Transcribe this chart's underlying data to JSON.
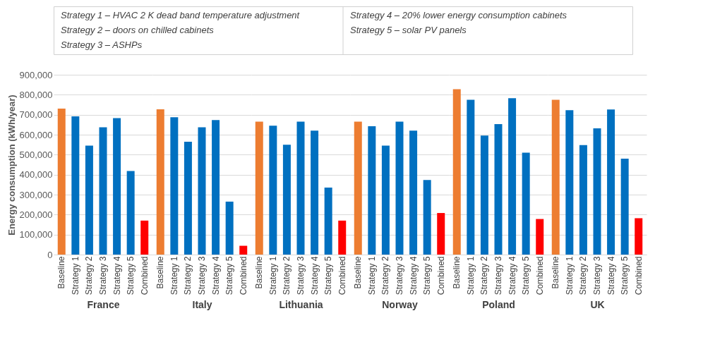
{
  "chart_data": [
    {
      "type": "bar",
      "annotations": [
        "Strategy 1 – HVAC 2 K dead band temperature adjustment",
        "Strategy 2 – doors on chilled cabinets",
        "Strategy 3 – ASHPs",
        "Strategy 4 – 20% lower energy consumption cabinets",
        "Strategy 5 – solar PV panels"
      ],
      "ylabel": "Energy consumption (kWh/year)",
      "xlabel": "France",
      "categories": [
        "Baseline",
        "Strategy 1",
        "Strategy 2",
        "Strategy 3",
        "Strategy 4",
        "Strategy 5",
        "Combined"
      ],
      "values": [
        731000,
        692000,
        545000,
        637000,
        683000,
        418000,
        170000
      ],
      "colors": [
        "#ed7d31",
        "#0070c0",
        "#0070c0",
        "#0070c0",
        "#0070c0",
        "#0070c0",
        "#ff0000"
      ],
      "ylim": [
        0,
        900000
      ],
      "yticks": [
        0,
        {
          "value": 100000,
          "label": "100,000"
        },
        {
          "value": 200000,
          "label": "200,000"
        },
        {
          "value": 300000,
          "label": "300,000"
        },
        {
          "value": 400000,
          "label": "400,000"
        },
        {
          "value": 500000,
          "label": "500,000"
        },
        {
          "value": 600000,
          "label": "600,000"
        },
        {
          "value": 700000,
          "label": "700,000"
        },
        {
          "value": 800000,
          "label": "800,000"
        },
        {
          "value": 900000,
          "label": "900,000"
        }
      ],
      "grid": "y"
    },
    {
      "type": "bar",
      "xlabel": "Italy",
      "tick_labels": "x",
      "categories": [
        "Baseline",
        "Strategy 1",
        "Strategy 2",
        "Strategy 3",
        "Strategy 4",
        "Strategy 5",
        "Combined"
      ],
      "values": [
        727000,
        687000,
        565000,
        637000,
        673000,
        265000,
        44000
      ],
      "colors": [
        "#ed7d31",
        "#0070c0",
        "#0070c0",
        "#0070c0",
        "#0070c0",
        "#0070c0",
        "#ff0000"
      ],
      "ylim": [
        0,
        900000
      ],
      "yticks": [
        0,
        100000,
        200000,
        300000,
        400000,
        500000,
        600000,
        700000,
        800000,
        900000
      ],
      "grid": "y"
    },
    {
      "type": "bar",
      "xlabel": "Lithuania",
      "tick_labels": "x",
      "categories": [
        "Baseline",
        "Strategy 1",
        "Strategy 2",
        "Strategy 3",
        "Strategy 4",
        "Strategy 5",
        "Combined"
      ],
      "values": [
        665000,
        645000,
        550000,
        665000,
        620000,
        335000,
        170000
      ],
      "colors": [
        "#ed7d31",
        "#0070c0",
        "#0070c0",
        "#0070c0",
        "#0070c0",
        "#0070c0",
        "#ff0000"
      ],
      "ylim": [
        0,
        900000
      ],
      "yticks": [
        0,
        100000,
        200000,
        300000,
        400000,
        500000,
        600000,
        700000,
        800000,
        900000
      ],
      "grid": "y"
    },
    {
      "type": "bar",
      "xlabel": "Norway",
      "tick_labels": "x",
      "categories": [
        "Baseline",
        "Strategy 1",
        "Strategy 2",
        "Strategy 3",
        "Strategy 4",
        "Strategy 5",
        "Combined"
      ],
      "values": [
        665000,
        642000,
        545000,
        665000,
        620000,
        373000,
        208000
      ],
      "colors": [
        "#ed7d31",
        "#0070c0",
        "#0070c0",
        "#0070c0",
        "#0070c0",
        "#0070c0",
        "#ff0000"
      ],
      "ylim": [
        0,
        900000
      ],
      "yticks": [
        0,
        100000,
        200000,
        300000,
        400000,
        500000,
        600000,
        700000,
        800000,
        900000
      ],
      "grid": "y"
    },
    {
      "type": "bar",
      "xlabel": "Poland",
      "tick_labels": "x",
      "categories": [
        "Baseline",
        "Strategy 1",
        "Strategy 2",
        "Strategy 3",
        "Strategy 4",
        "Strategy 5",
        "Combined"
      ],
      "values": [
        828000,
        775000,
        596000,
        653000,
        783000,
        510000,
        178000
      ],
      "colors": [
        "#ed7d31",
        "#0070c0",
        "#0070c0",
        "#0070c0",
        "#0070c0",
        "#0070c0",
        "#ff0000"
      ],
      "ylim": [
        0,
        900000
      ],
      "yticks": [
        0,
        100000,
        200000,
        300000,
        400000,
        500000,
        600000,
        700000,
        800000,
        900000
      ],
      "grid": "y"
    },
    {
      "type": "bar",
      "xlabel": "UK",
      "tick_labels": "x",
      "categories": [
        "Baseline",
        "Strategy 1",
        "Strategy 2",
        "Strategy 3",
        "Strategy 4",
        "Strategy 5",
        "Combined"
      ],
      "values": [
        775000,
        723000,
        548000,
        632000,
        726000,
        480000,
        182000
      ],
      "colors": [
        "#ed7d31",
        "#0070c0",
        "#0070c0",
        "#0070c0",
        "#0070c0",
        "#0070c0",
        "#ff0000"
      ],
      "ylim": [
        0,
        900000
      ],
      "yticks": [
        0,
        100000,
        200000,
        300000,
        400000,
        500000,
        600000,
        700000,
        800000,
        900000
      ],
      "grid": "y"
    }
  ]
}
